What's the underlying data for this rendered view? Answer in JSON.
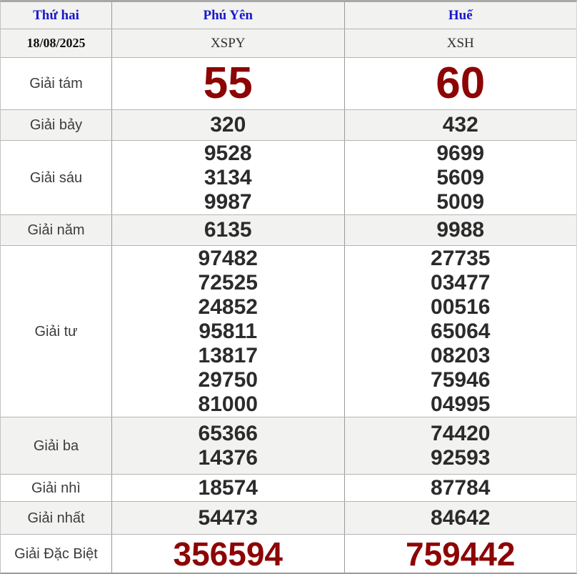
{
  "colors": {
    "accent_red": "#8d0404",
    "header_blue": "#1717cd",
    "number_dark": "#2b2b2b",
    "row_shade": "#f2f2f0",
    "border_gray": "#9a9a9a"
  },
  "header": {
    "day": "Thứ hai",
    "province1": "Phú Yên",
    "province2": "Huế"
  },
  "subheader": {
    "date": "18/08/2025",
    "code1": "XSPY",
    "code2": "XSH"
  },
  "prizes": [
    {
      "label": "Giải tám",
      "py": [
        "55"
      ],
      "hue": [
        "60"
      ]
    },
    {
      "label": "Giải bảy",
      "py": [
        "320"
      ],
      "hue": [
        "432"
      ]
    },
    {
      "label": "Giải sáu",
      "py": [
        "9528",
        "3134",
        "9987"
      ],
      "hue": [
        "9699",
        "5609",
        "5009"
      ]
    },
    {
      "label": "Giải năm",
      "py": [
        "6135"
      ],
      "hue": [
        "9988"
      ]
    },
    {
      "label": "Giải tư",
      "py": [
        "97482",
        "72525",
        "24852",
        "95811",
        "13817",
        "29750",
        "81000"
      ],
      "hue": [
        "27735",
        "03477",
        "00516",
        "65064",
        "08203",
        "75946",
        "04995"
      ]
    },
    {
      "label": "Giải ba",
      "py": [
        "65366",
        "14376"
      ],
      "hue": [
        "74420",
        "92593"
      ]
    },
    {
      "label": "Giải nhì",
      "py": [
        "18574"
      ],
      "hue": [
        "87784"
      ]
    },
    {
      "label": "Giải nhất",
      "py": [
        "54473"
      ],
      "hue": [
        "84642"
      ]
    },
    {
      "label": "Giải Đặc Biệt",
      "py": [
        "356594"
      ],
      "hue": [
        "759442"
      ]
    }
  ]
}
